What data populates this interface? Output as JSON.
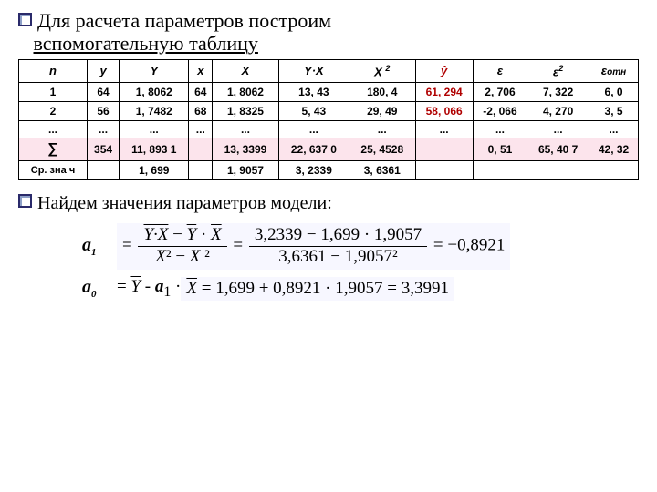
{
  "title": {
    "line1_prefix": "Для расчета параметров построим",
    "line2_underlined": "вспомогательную таблицу"
  },
  "table": {
    "headers": [
      "n",
      "y",
      "Y",
      "x",
      "X",
      "Y·X",
      "X ²",
      "ŷ",
      "ε",
      "ε²",
      "εотн"
    ],
    "row1": [
      "1",
      "64",
      "1, 8062",
      "64",
      "1, 8062",
      "13, 43",
      "180, 4",
      "61, 294",
      "2, 706",
      "7, 322",
      "6, 0"
    ],
    "row2": [
      "2",
      "56",
      "1, 7482",
      "68",
      "1, 8325",
      "5, 43",
      "29, 49",
      "58, 066",
      "-2, 066",
      "4, 270",
      "3, 5"
    ],
    "row_ell": [
      "...",
      "...",
      "...",
      "...",
      "...",
      "...",
      "...",
      "...",
      "...",
      "...",
      "..."
    ],
    "row_sum": [
      "∑",
      "354",
      "11, 893 1",
      "",
      "13, 3399",
      "22, 637 0",
      "25, 4528",
      "",
      "0, 51",
      "65, 40 7",
      "42, 32"
    ],
    "row_avg": [
      "Ср. зна ч",
      "",
      "1, 699",
      "",
      "1, 9057",
      "3, 2339",
      "3, 6361",
      "",
      "",
      "",
      ""
    ]
  },
  "sub_text": "Найдем значения параметров модели:",
  "eq1": {
    "label": "a",
    "sub": "1",
    "num_sym": "Y·X − Y · X",
    "den_sym": "X² − X ²",
    "mid": "=",
    "num_val": "3,2339 − 1,699 · 1,9057",
    "den_val": "3,6361 − 1,9057²",
    "result": "= −0,8921"
  },
  "eq2": {
    "label": "a",
    "sub": "0",
    "lhs": "= Y - a₁ · X ",
    "rhs": "= 1,699 + 0,8921 · 1,9057 = 3,3991"
  },
  "colors": {
    "yhat": "#b00000",
    "sum_row_bg": "#fce4ec",
    "formula_bg": "#f7f7ff"
  }
}
